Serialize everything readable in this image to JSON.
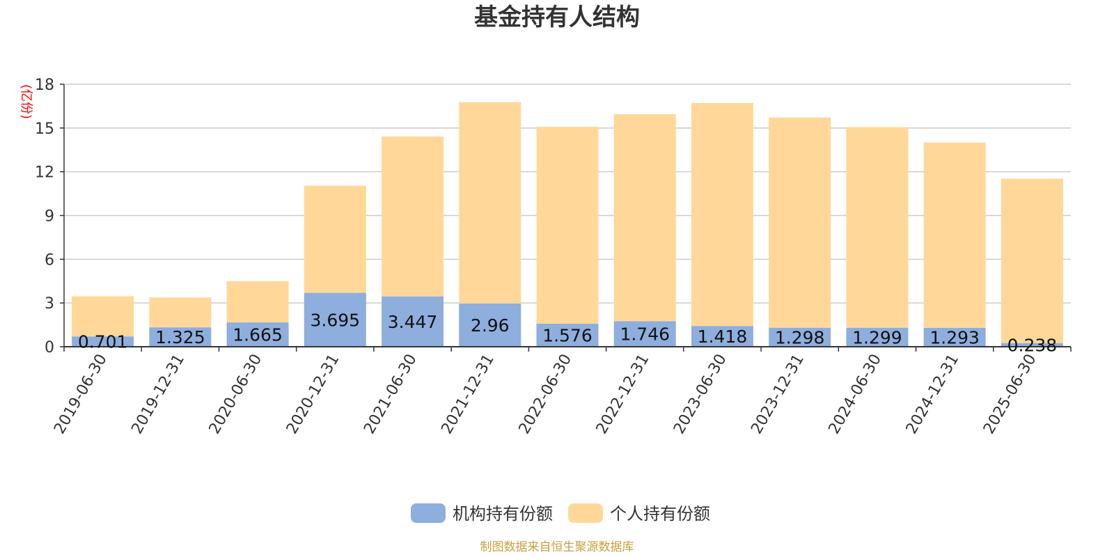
{
  "footer": "制图数据来自恒生聚源数据库",
  "chart_data": {
    "type": "bar",
    "stacked": true,
    "title": "基金持有人结构",
    "ylabel": "(亿份)",
    "xlabel": "",
    "ylim": [
      0,
      18
    ],
    "yticks": [
      0,
      3,
      6,
      9,
      12,
      15,
      18
    ],
    "grid": true,
    "legend_position": "bottom-center",
    "categories": [
      "2019-06-30",
      "2019-12-31",
      "2020-06-30",
      "2020-12-31",
      "2021-06-30",
      "2021-12-31",
      "2022-06-30",
      "2022-12-31",
      "2023-06-30",
      "2023-12-31",
      "2024-06-30",
      "2024-12-31",
      "2025-06-30"
    ],
    "series": [
      {
        "name": "机构持有份额",
        "color": "#8eaedd",
        "values": [
          0.701,
          1.325,
          1.665,
          3.695,
          3.447,
          2.96,
          1.576,
          1.746,
          1.418,
          1.298,
          1.299,
          1.293,
          0.238
        ],
        "labels": [
          "0.701",
          "1.325",
          "1.665",
          "3.695",
          "3.447",
          "2.96",
          "1.576",
          "1.746",
          "1.418",
          "1.298",
          "1.299",
          "1.293",
          "0.238"
        ]
      },
      {
        "name": "个人持有份额",
        "color": "#ffd899",
        "values": [
          2.76,
          2.05,
          2.83,
          7.35,
          10.97,
          13.81,
          13.51,
          14.2,
          15.3,
          14.42,
          13.76,
          12.71,
          11.29
        ]
      }
    ]
  }
}
